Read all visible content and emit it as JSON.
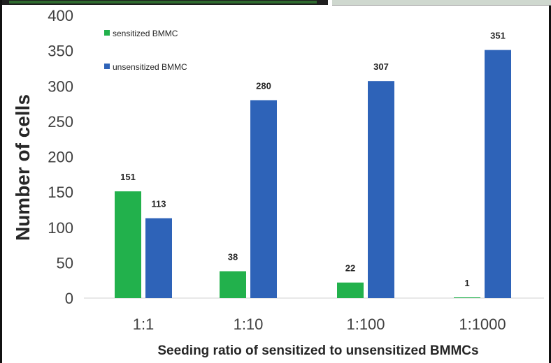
{
  "chart_data": {
    "type": "bar",
    "title": "",
    "xlabel": "Seeding ratio of sensitized to unsensitized BMMCs",
    "ylabel": "Number of cells",
    "categories": [
      "1:1",
      "1:10",
      "1:100",
      "1:1000"
    ],
    "ylim": [
      0,
      400
    ],
    "yticks": [
      0,
      50,
      100,
      150,
      200,
      250,
      300,
      350,
      400
    ],
    "grid": false,
    "legend_position": "top-left",
    "series": [
      {
        "name": "sensitized BMMC",
        "color": "#22b14c",
        "values": [
          151,
          38,
          22,
          1
        ]
      },
      {
        "name": "unsensitized BMMC",
        "color": "#2e63b8",
        "values": [
          113,
          280,
          307,
          351
        ]
      }
    ]
  }
}
